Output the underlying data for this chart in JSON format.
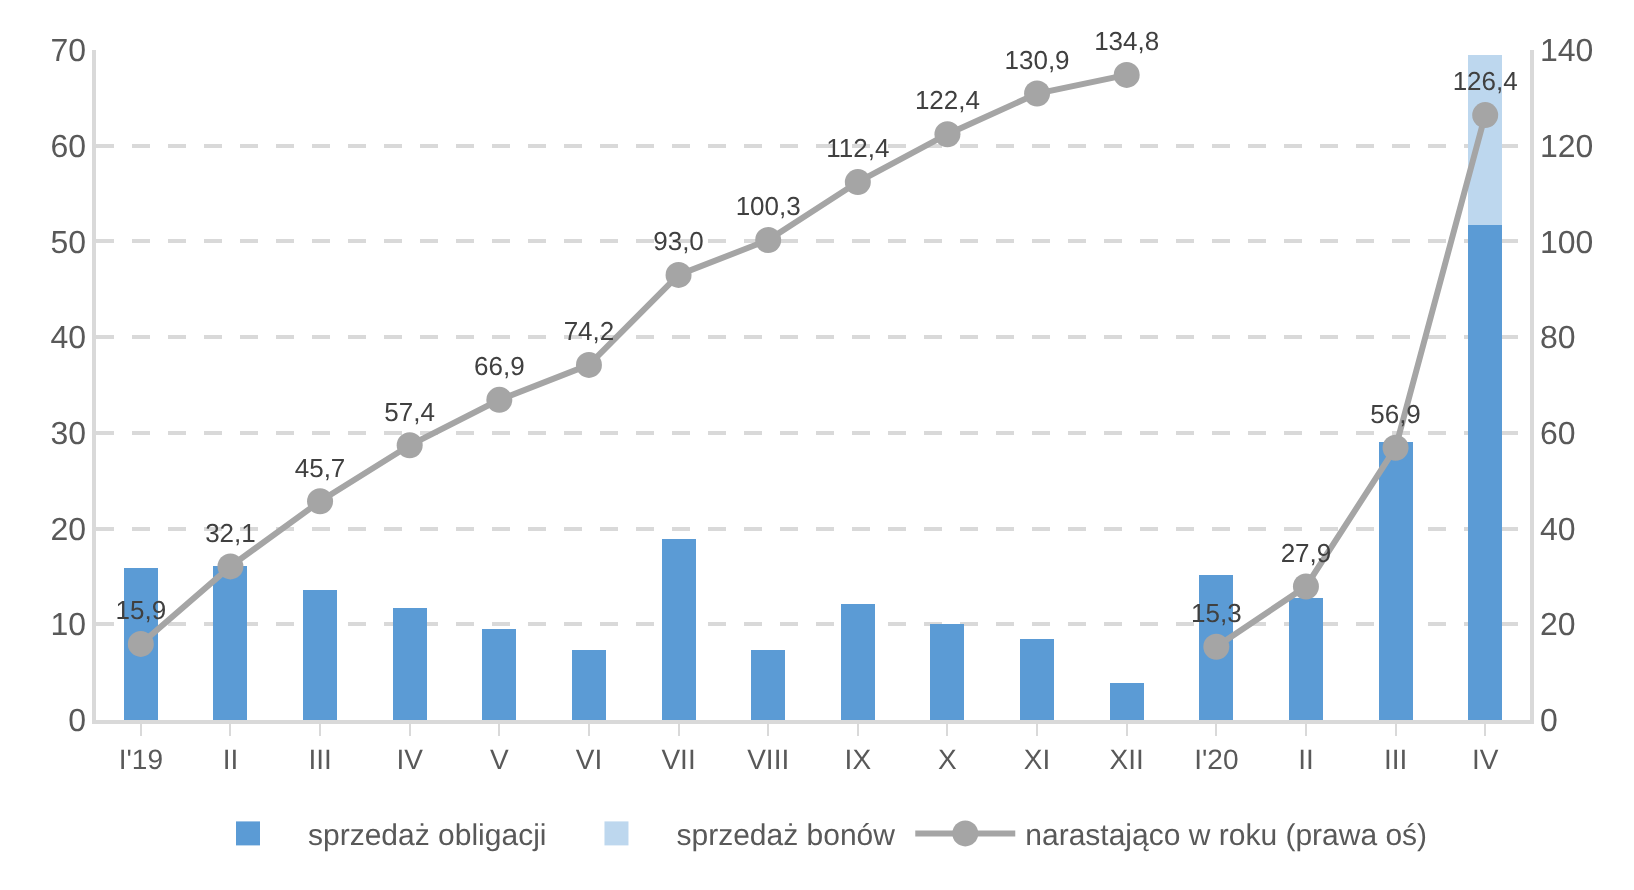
{
  "chart_data": {
    "type": "bar",
    "stacked": true,
    "categories": [
      "I'19",
      "II",
      "III",
      "IV",
      "V",
      "VI",
      "VII",
      "VIII",
      "IX",
      "X",
      "XI",
      "XII",
      "I'20",
      "II",
      "III",
      "IV"
    ],
    "series": [
      {
        "name": "sprzedaż obligacji",
        "color": "#5b9bd5",
        "values": [
          15.9,
          16.1,
          13.6,
          11.7,
          9.5,
          7.3,
          18.9,
          7.3,
          12.1,
          10.0,
          8.5,
          3.9,
          15.2,
          12.7,
          29.0,
          51.7
        ]
      },
      {
        "name": "sprzedaż bonów",
        "color": "#bdd7ee",
        "values": [
          null,
          null,
          null,
          null,
          null,
          null,
          null,
          null,
          null,
          null,
          null,
          null,
          null,
          null,
          null,
          17.8
        ]
      },
      {
        "name": "narastająco w roku (prawa oś)",
        "type": "line",
        "axis": "y2",
        "color": "#a5a5a5",
        "marker": "circle",
        "values": [
          15.9,
          32.1,
          45.7,
          57.4,
          66.9,
          74.2,
          93.0,
          100.3,
          112.4,
          122.4,
          130.9,
          134.8,
          null,
          null,
          null,
          null
        ],
        "value_labels": [
          "15,9",
          "32,1",
          "45,7",
          "57,4",
          "66,9",
          "74,2",
          "93,0",
          "100,3",
          "112,4",
          "122,4",
          "130,9",
          "134,8",
          null,
          null,
          null,
          null
        ]
      },
      {
        "type": "line",
        "axis": "y2",
        "color": "#a5a5a5",
        "marker": "circle",
        "values": [
          null,
          null,
          null,
          null,
          null,
          null,
          null,
          null,
          null,
          null,
          null,
          null,
          15.3,
          27.9,
          56.9,
          126.4
        ],
        "value_labels": [
          null,
          null,
          null,
          null,
          null,
          null,
          null,
          null,
          null,
          null,
          null,
          null,
          "15,3",
          "27,9",
          "56,9",
          "126,4"
        ]
      }
    ],
    "ylim": [
      0,
      70
    ],
    "yticks": [
      0,
      10,
      20,
      30,
      40,
      50,
      60,
      70
    ],
    "y2lim": [
      0,
      140
    ],
    "y2ticks": [
      0,
      20,
      40,
      60,
      80,
      100,
      120,
      140
    ],
    "grid": "y",
    "legend": "bottom"
  }
}
